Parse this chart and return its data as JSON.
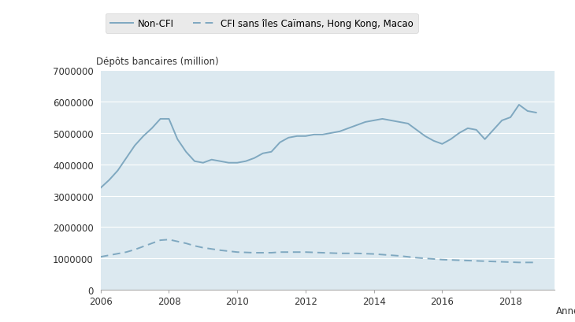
{
  "ylabel": "Dépôts bancaires (million)",
  "xlabel_end": "Années",
  "legend_labels": [
    "Non-CFI",
    "CFI sans îles Caïmans, Hong Kong, Macao"
  ],
  "line_color": "#7fa8c0",
  "background_color": "#dce9f0",
  "legend_bg": "#e5e5e5",
  "ylim": [
    0,
    7000000
  ],
  "yticks": [
    0,
    1000000,
    2000000,
    3000000,
    4000000,
    5000000,
    6000000,
    7000000
  ],
  "xticks": [
    2006,
    2008,
    2010,
    2012,
    2014,
    2016,
    2018
  ],
  "xlim_left": 2006,
  "xlim_right": 2019.3,
  "non_cfi_x": [
    2006.0,
    2006.25,
    2006.5,
    2006.75,
    2007.0,
    2007.25,
    2007.5,
    2007.75,
    2008.0,
    2008.25,
    2008.5,
    2008.75,
    2009.0,
    2009.25,
    2009.5,
    2009.75,
    2010.0,
    2010.25,
    2010.5,
    2010.75,
    2011.0,
    2011.25,
    2011.5,
    2011.75,
    2012.0,
    2012.25,
    2012.5,
    2012.75,
    2013.0,
    2013.25,
    2013.5,
    2013.75,
    2014.0,
    2014.25,
    2014.5,
    2014.75,
    2015.0,
    2015.25,
    2015.5,
    2015.75,
    2016.0,
    2016.25,
    2016.5,
    2016.75,
    2017.0,
    2017.25,
    2017.5,
    2017.75,
    2018.0,
    2018.25,
    2018.5,
    2018.75
  ],
  "non_cfi_y": [
    3250000,
    3500000,
    3800000,
    4200000,
    4600000,
    4900000,
    5150000,
    5450000,
    5450000,
    4800000,
    4400000,
    4100000,
    4050000,
    4150000,
    4100000,
    4050000,
    4050000,
    4100000,
    4200000,
    4350000,
    4400000,
    4700000,
    4850000,
    4900000,
    4900000,
    4950000,
    4950000,
    5000000,
    5050000,
    5150000,
    5250000,
    5350000,
    5400000,
    5450000,
    5400000,
    5350000,
    5300000,
    5100000,
    4900000,
    4750000,
    4650000,
    4800000,
    5000000,
    5150000,
    5100000,
    4800000,
    5100000,
    5400000,
    5500000,
    5900000,
    5700000,
    5650000
  ],
  "cfi_x": [
    2006.0,
    2006.25,
    2006.5,
    2006.75,
    2007.0,
    2007.25,
    2007.5,
    2007.75,
    2008.0,
    2008.25,
    2008.5,
    2008.75,
    2009.0,
    2009.25,
    2009.5,
    2009.75,
    2010.0,
    2010.25,
    2010.5,
    2010.75,
    2011.0,
    2011.25,
    2011.5,
    2011.75,
    2012.0,
    2012.25,
    2012.5,
    2012.75,
    2013.0,
    2013.25,
    2013.5,
    2013.75,
    2014.0,
    2014.25,
    2014.5,
    2014.75,
    2015.0,
    2015.25,
    2015.5,
    2015.75,
    2016.0,
    2016.25,
    2016.5,
    2016.75,
    2017.0,
    2017.25,
    2017.5,
    2017.75,
    2018.0,
    2018.25,
    2018.5,
    2018.75
  ],
  "cfi_y": [
    1050000,
    1100000,
    1150000,
    1200000,
    1280000,
    1380000,
    1480000,
    1580000,
    1600000,
    1540000,
    1480000,
    1400000,
    1340000,
    1300000,
    1260000,
    1230000,
    1200000,
    1190000,
    1180000,
    1180000,
    1180000,
    1200000,
    1200000,
    1200000,
    1200000,
    1190000,
    1180000,
    1170000,
    1160000,
    1160000,
    1160000,
    1150000,
    1140000,
    1120000,
    1100000,
    1080000,
    1050000,
    1020000,
    1000000,
    980000,
    960000,
    950000,
    940000,
    930000,
    920000,
    910000,
    900000,
    890000,
    880000,
    870000,
    870000,
    870000
  ]
}
